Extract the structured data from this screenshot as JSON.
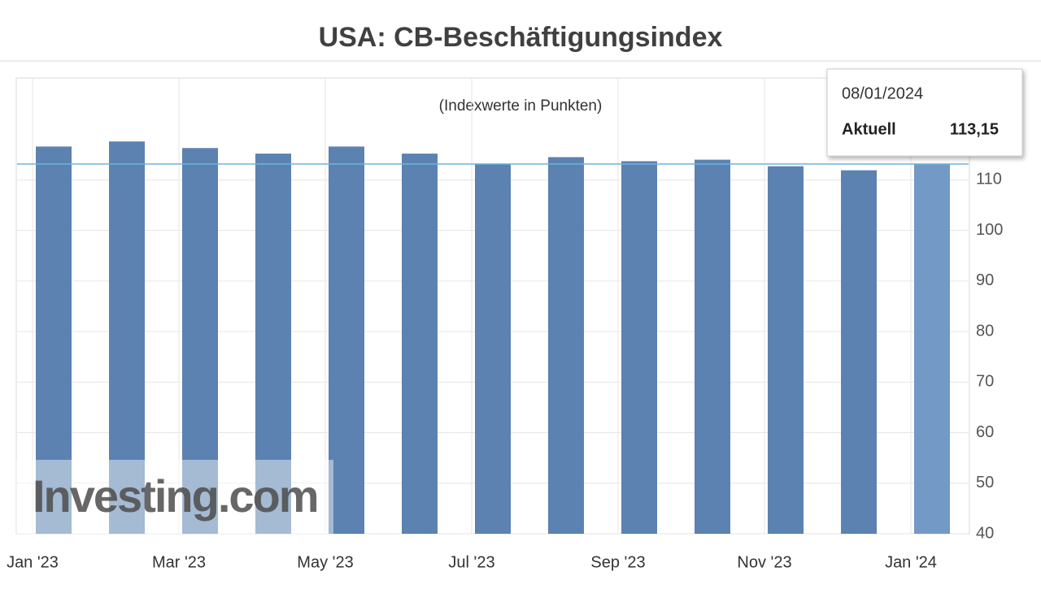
{
  "chart_data": {
    "type": "bar",
    "title": "USA: CB-Beschäftigungsindex",
    "subtitle": "(Indexwerte in Punkten)",
    "categories": [
      "Jan '23",
      null,
      "Mar '23",
      null,
      "May '23",
      null,
      "Jul '23",
      null,
      "Sep '23",
      null,
      "Nov '23",
      null,
      "Jan '24"
    ],
    "values": [
      116.6,
      117.6,
      116.3,
      115.2,
      116.6,
      115.2,
      113.1,
      114.5,
      113.7,
      114.0,
      112.7,
      111.9,
      113.15
    ],
    "value_labels": [
      null,
      null,
      null,
      null,
      null,
      null,
      null,
      null,
      null,
      null,
      null,
      null,
      "113,15"
    ],
    "color": "#5b82b0",
    "highlight_color": "#7399c6",
    "ylim": [
      40,
      130
    ],
    "yticks": [
      40,
      50,
      60,
      70,
      80,
      90,
      100,
      110
    ],
    "grid": true,
    "tooltip": {
      "date": "08/01/2024",
      "label": "Aktuell"
    },
    "watermark": "Investing.com"
  }
}
